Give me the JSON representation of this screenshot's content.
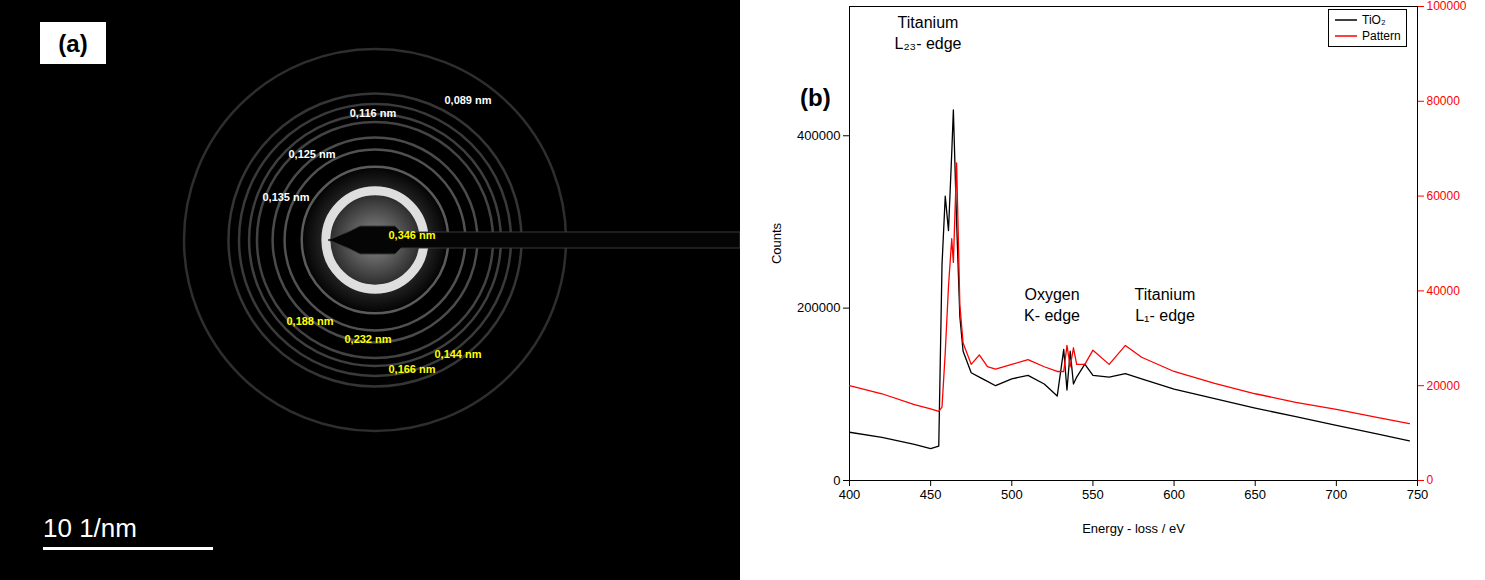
{
  "chart_data": [
    {
      "type": "diffraction_pattern",
      "panel_label": "(a)",
      "scale_bar": {
        "length": 10,
        "label": "10 1/nm"
      },
      "rings": [
        {
          "d": 0.089,
          "label": "0,089 nm",
          "color": "#ffffff"
        },
        {
          "d": 0.116,
          "label": "0,116 nm",
          "color": "#ffffff"
        },
        {
          "d": 0.125,
          "label": "0,125 nm",
          "color": "#ffffff"
        },
        {
          "d": 0.135,
          "label": "0,135 nm",
          "color": "#ffffff"
        },
        {
          "d": 0.346,
          "label": "0,346 nm",
          "color": "#ffff00"
        },
        {
          "d": 0.188,
          "label": "0,188 nm",
          "color": "#ffff00"
        },
        {
          "d": 0.232,
          "label": "0,232 nm",
          "color": "#ffff00"
        },
        {
          "d": 0.144,
          "label": "0,144 nm",
          "color": "#ffff00"
        },
        {
          "d": 0.166,
          "label": "0,166 nm",
          "color": "#ffff00"
        }
      ]
    },
    {
      "type": "line",
      "panel_label": "(b)",
      "x_label": "Energy - loss / eV",
      "y_label": "Counts",
      "x": [
        400,
        420,
        440,
        450,
        455,
        457,
        459,
        461,
        463,
        464,
        466,
        468,
        470,
        475,
        480,
        485,
        490,
        500,
        510,
        520,
        528,
        532,
        534,
        536,
        538,
        540,
        545,
        550,
        560,
        570,
        580,
        600,
        625,
        650,
        675,
        700,
        725,
        745
      ],
      "series": [
        {
          "name": "TiO₂",
          "color": "#000000",
          "values": [
            56000,
            50000,
            42000,
            37000,
            40000,
            250000,
            330000,
            290000,
            380000,
            430000,
            300000,
            190000,
            150000,
            125000,
            120000,
            115000,
            110000,
            118000,
            122000,
            112000,
            98000,
            152000,
            105000,
            150000,
            112000,
            120000,
            135000,
            122000,
            120000,
            124000,
            118000,
            106000,
            95000,
            84000,
            74000,
            64000,
            54000,
            46000
          ]
        },
        {
          "name": "Pattern",
          "color": "#ff0000",
          "axis": "y2",
          "values": [
            20000,
            18300,
            16000,
            15100,
            14600,
            15500,
            27000,
            41000,
            51000,
            46000,
            67000,
            37000,
            29000,
            24500,
            26500,
            24000,
            23500,
            24500,
            25500,
            24000,
            23000,
            23000,
            28500,
            24000,
            28000,
            24500,
            24500,
            27500,
            24500,
            28500,
            26000,
            23000,
            20500,
            18300,
            16500,
            15000,
            13300,
            12000
          ]
        }
      ],
      "xlim": [
        400,
        750
      ],
      "xticks": [
        400,
        450,
        500,
        550,
        600,
        650,
        700,
        750
      ],
      "ylim": [
        0,
        550000
      ],
      "yticks": [
        0,
        200000,
        400000
      ],
      "y2lim": [
        0,
        100000
      ],
      "y2ticks": [
        0,
        20000,
        40000,
        60000,
        80000,
        100000
      ],
      "legend": "top-right",
      "annotations": [
        {
          "text": "Titanium\nL₂₃- edge"
        },
        {
          "text": "Oxygen\nK- edge"
        },
        {
          "text": "Titanium\nL₁- edge"
        }
      ]
    }
  ]
}
